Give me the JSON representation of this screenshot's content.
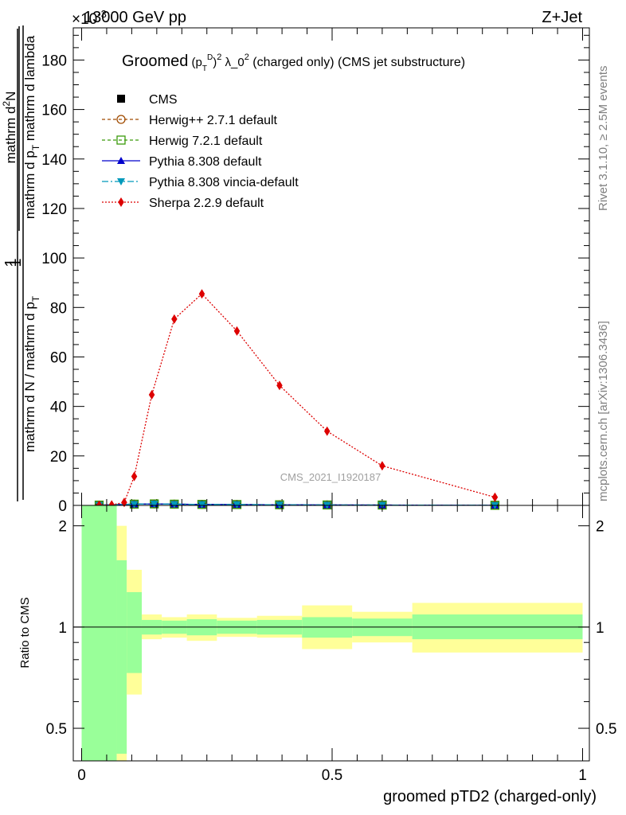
{
  "header": {
    "energy": "13000 GeV pp",
    "process": "Z+Jet",
    "exponent": "×10",
    "exponent_power": "-3"
  },
  "side_labels": {
    "rivet": "Rivet 3.1.10, ≥ 2.5M events",
    "mcplots": "mcplots.cern.ch [arXiv:1306.3436]"
  },
  "watermark": "CMS_2021_I1920187",
  "main_title": "Groomed (p_T^D)^2 λ_0^2  (charged only) (CMS jet substructure)",
  "chart_data": [
    {
      "type": "line",
      "panel": "main",
      "ylabel": "1 / (mathrm d N / mathrm d p_T) · mathrm d^2N / (mathrm d p_T mathrm d lambda)",
      "ylim": [
        0,
        193
      ],
      "xlim": [
        0,
        1
      ],
      "yticks": [
        0,
        20,
        40,
        60,
        80,
        100,
        120,
        140,
        160,
        180
      ],
      "legend_position": "top-left",
      "series": [
        {
          "name": "CMS",
          "marker": "square",
          "color": "#000000",
          "x": [
            0.035,
            0.105,
            0.145,
            0.185,
            0.24,
            0.31,
            0.395,
            0.49,
            0.6,
            0.825
          ],
          "y": [
            0.12,
            0.5,
            0.6,
            0.5,
            0.4,
            0.35,
            0.25,
            0.18,
            0.14,
            0.04
          ]
        },
        {
          "name": "Herwig++ 2.7.1 default",
          "marker": "circle-open",
          "color": "#a04b00",
          "dash": "4,3",
          "x": [
            0.035,
            0.105,
            0.145,
            0.185,
            0.24,
            0.31,
            0.395,
            0.49,
            0.6,
            0.825
          ],
          "y": [
            0.12,
            0.5,
            0.6,
            0.5,
            0.4,
            0.35,
            0.25,
            0.18,
            0.14,
            0.04
          ]
        },
        {
          "name": "Herwig 7.2.1 default",
          "marker": "square-open",
          "color": "#3a9a0a",
          "dash": "4,3",
          "x": [
            0.035,
            0.105,
            0.145,
            0.185,
            0.24,
            0.31,
            0.395,
            0.49,
            0.6,
            0.825
          ],
          "y": [
            0.12,
            0.5,
            0.6,
            0.5,
            0.4,
            0.35,
            0.25,
            0.18,
            0.14,
            0.04
          ]
        },
        {
          "name": "Pythia 8.308 default",
          "marker": "triangle-up",
          "color": "#0000cc",
          "dash": "",
          "x": [
            0.035,
            0.105,
            0.145,
            0.185,
            0.24,
            0.31,
            0.395,
            0.49,
            0.6,
            0.825
          ],
          "y": [
            0.12,
            0.5,
            0.6,
            0.5,
            0.4,
            0.35,
            0.25,
            0.18,
            0.14,
            0.04
          ]
        },
        {
          "name": "Pythia 8.308 vincia-default",
          "marker": "triangle-down",
          "color": "#0099bb",
          "dash": "8,3,2,3",
          "x": [
            0.035,
            0.105,
            0.145,
            0.185,
            0.24,
            0.31,
            0.395,
            0.49,
            0.6,
            0.825
          ],
          "y": [
            0.12,
            0.5,
            0.6,
            0.5,
            0.4,
            0.35,
            0.25,
            0.18,
            0.14,
            0.04
          ]
        },
        {
          "name": "Sherpa 2.2.9 default",
          "marker": "diamond",
          "color": "#dd0000",
          "dash": "2,2",
          "x": [
            0.035,
            0.06,
            0.085,
            0.105,
            0.14,
            0.185,
            0.24,
            0.31,
            0.395,
            0.49,
            0.6,
            0.825
          ],
          "y": [
            0.1,
            0.2,
            1.2,
            11.7,
            44.7,
            75.3,
            85.5,
            70.5,
            48.5,
            30.0,
            16.0,
            3.3
          ]
        }
      ]
    },
    {
      "type": "area",
      "panel": "ratio",
      "xlabel": "groomed pTD2 (charged-only)",
      "ylabel": "Ratio to CMS",
      "ylim": [
        0.4,
        2.3
      ],
      "y_scale": "log",
      "xlim": [
        0,
        1
      ],
      "xticks": [
        0,
        0.5,
        1
      ],
      "xtick_labels": [
        "0",
        "0.5",
        "1"
      ],
      "yticks": [
        0.5,
        1,
        2
      ],
      "ytick_labels": [
        "0.5",
        "1",
        "2"
      ],
      "reference_line": 1,
      "bins": [
        {
          "x0": 0.0,
          "x1": 0.07,
          "green": [
            0.3,
            3.0
          ],
          "yellow": [
            0.3,
            3.0
          ]
        },
        {
          "x0": 0.07,
          "x1": 0.09,
          "green": [
            0.42,
            1.58
          ],
          "yellow": [
            0.3,
            2.0
          ]
        },
        {
          "x0": 0.09,
          "x1": 0.12,
          "green": [
            0.73,
            1.27
          ],
          "yellow": [
            0.63,
            1.48
          ]
        },
        {
          "x0": 0.12,
          "x1": 0.16,
          "green": [
            0.95,
            1.05
          ],
          "yellow": [
            0.92,
            1.09
          ]
        },
        {
          "x0": 0.16,
          "x1": 0.21,
          "green": [
            0.955,
            1.045
          ],
          "yellow": [
            0.93,
            1.07
          ]
        },
        {
          "x0": 0.21,
          "x1": 0.27,
          "green": [
            0.945,
            1.055
          ],
          "yellow": [
            0.91,
            1.09
          ]
        },
        {
          "x0": 0.27,
          "x1": 0.35,
          "green": [
            0.955,
            1.045
          ],
          "yellow": [
            0.935,
            1.065
          ]
        },
        {
          "x0": 0.35,
          "x1": 0.44,
          "green": [
            0.95,
            1.05
          ],
          "yellow": [
            0.93,
            1.08
          ]
        },
        {
          "x0": 0.44,
          "x1": 0.54,
          "green": [
            0.93,
            1.07
          ],
          "yellow": [
            0.86,
            1.16
          ]
        },
        {
          "x0": 0.54,
          "x1": 0.66,
          "green": [
            0.94,
            1.06
          ],
          "yellow": [
            0.9,
            1.11
          ]
        },
        {
          "x0": 0.66,
          "x1": 1.0,
          "green": [
            0.92,
            1.09
          ],
          "yellow": [
            0.84,
            1.18
          ]
        }
      ],
      "colors": {
        "inner": "#99ff99",
        "outer": "#ffff99"
      }
    }
  ]
}
